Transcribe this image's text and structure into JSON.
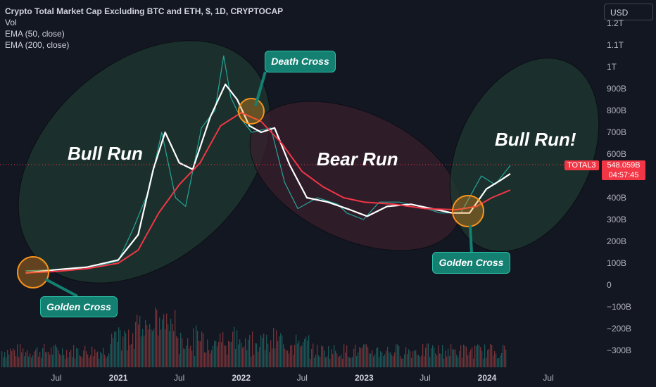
{
  "header": {
    "title": "Crypto Total Market Cap Excluding BTC and ETH, $, 1D, CRYPTOCAP",
    "indicators": [
      "Vol",
      "EMA (50, close)",
      "EMA (200, close)"
    ]
  },
  "currency_button": "USD",
  "price_badge": {
    "symbol": "TOTAL3",
    "value": "548.059B",
    "countdown": "04:57:45"
  },
  "annotations": {
    "bull_run_left": "Bull Run",
    "bear_run": "Bear Run",
    "bull_run_right": "Bull Run!",
    "golden_cross_left": "Golden Cross",
    "death_cross": "Death Cross",
    "golden_cross_right": "Golden Cross"
  },
  "colors": {
    "background": "#131722",
    "price_candles": "#26a69a",
    "ema50": "#ffffff",
    "ema200": "#f23645",
    "bull_zone": "#1f3a30",
    "bear_zone": "#3a1f2c",
    "cross_marker": "#f7931a",
    "callout_bg": "#138072",
    "price_badge": "#f23645"
  },
  "chart_data": {
    "type": "line",
    "title": "Crypto Total Market Cap Excluding BTC and ETH, $, 1D, CRYPTOCAP",
    "y_unit": "USD",
    "y_ticks": [
      "1.2T",
      "1.1T",
      "1T",
      "900B",
      "800B",
      "700B",
      "600B",
      "500B",
      "400B",
      "300B",
      "200B",
      "100B",
      "0",
      "−100B",
      "−200B",
      "−300B"
    ],
    "x_ticks": [
      "Jul",
      "2021",
      "Jul",
      "2022",
      "Jul",
      "2023",
      "Jul",
      "2024",
      "Jul"
    ],
    "x_ticks_bold": [
      "2021",
      "2022",
      "2023",
      "2024"
    ],
    "ylim": [
      -330,
      1200
    ],
    "x_range": [
      "2020-04-01",
      "2024-09-01"
    ],
    "series": [
      {
        "name": "TOTAL3",
        "x": [
          "2020-04-01",
          "2020-07-01",
          "2020-10-01",
          "2021-01-01",
          "2021-02-15",
          "2021-04-01",
          "2021-05-10",
          "2021-06-20",
          "2021-07-20",
          "2021-09-05",
          "2021-10-15",
          "2021-11-10",
          "2021-12-01",
          "2022-01-01",
          "2022-02-01",
          "2022-03-30",
          "2022-05-10",
          "2022-06-18",
          "2022-08-15",
          "2022-10-15",
          "2022-11-10",
          "2022-12-30",
          "2023-02-15",
          "2023-04-15",
          "2023-06-15",
          "2023-08-15",
          "2023-10-15",
          "2023-12-15",
          "2024-01-25",
          "2024-03-10"
        ],
        "values": [
          65,
          70,
          75,
          110,
          260,
          430,
          700,
          400,
          360,
          720,
          800,
          1050,
          860,
          760,
          700,
          720,
          470,
          350,
          400,
          370,
          330,
          300,
          380,
          380,
          360,
          330,
          330,
          500,
          460,
          548
        ]
      },
      {
        "name": "EMA (50, close)",
        "x": [
          "2020-04-01",
          "2020-07-01",
          "2020-10-01",
          "2021-01-01",
          "2021-03-01",
          "2021-04-15",
          "2021-05-20",
          "2021-07-01",
          "2021-08-10",
          "2021-10-01",
          "2021-11-15",
          "2021-12-20",
          "2022-01-25",
          "2022-03-01",
          "2022-04-10",
          "2022-05-25",
          "2022-07-15",
          "2022-09-15",
          "2022-11-20",
          "2023-01-10",
          "2023-03-10",
          "2023-05-20",
          "2023-07-20",
          "2023-09-20",
          "2023-11-10",
          "2023-12-30",
          "2024-02-10",
          "2024-03-10"
        ],
        "values": [
          55,
          70,
          82,
          115,
          230,
          530,
          700,
          560,
          530,
          770,
          920,
          850,
          730,
          700,
          720,
          550,
          400,
          380,
          345,
          315,
          360,
          370,
          350,
          330,
          330,
          440,
          480,
          510
        ]
      },
      {
        "name": "EMA (200, close)",
        "x": [
          "2020-04-01",
          "2020-07-01",
          "2020-10-01",
          "2021-01-01",
          "2021-03-01",
          "2021-05-01",
          "2021-07-01",
          "2021-09-01",
          "2021-11-01",
          "2022-01-01",
          "2022-03-01",
          "2022-05-01",
          "2022-07-01",
          "2022-09-01",
          "2022-11-01",
          "2023-01-01",
          "2023-04-01",
          "2023-07-01",
          "2023-10-01",
          "2023-12-01",
          "2024-01-15",
          "2024-03-10"
        ],
        "values": [
          55,
          62,
          75,
          100,
          160,
          330,
          460,
          560,
          730,
          790,
          750,
          650,
          520,
          450,
          400,
          380,
          370,
          350,
          345,
          360,
          400,
          435
        ]
      }
    ],
    "volume_note": "Vol bars drawn in the lower band (unlabeled, relative heights only)"
  }
}
